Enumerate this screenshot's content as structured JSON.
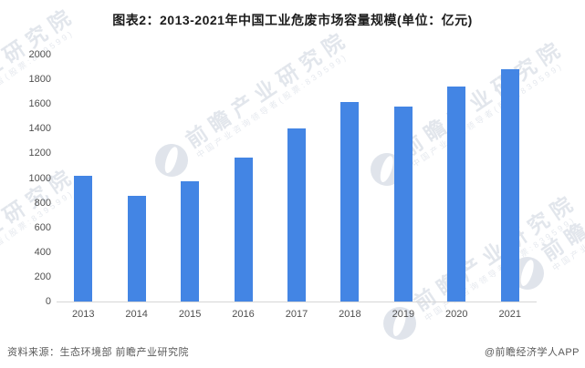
{
  "title": "图表2：2013-2021年中国工业危废市场容量规模(单位：亿元)",
  "footer": {
    "source": "资料来源：生态环境部 前瞻产业研究院",
    "credit": "@前瞻经济学人APP"
  },
  "watermark": {
    "text": "前瞻产业研究院",
    "subtext": "中国产业咨询领导者(股票:839599)"
  },
  "colors": {
    "bar": "#4385E4",
    "axis_line": "#d6d6d6",
    "tick_text": "#4f4f4f",
    "watermark": "#c7cfdb"
  },
  "chart_data": {
    "type": "bar",
    "title": "图表2：2013-2021年中国工业危废市场容量规模(单位：亿元)",
    "unit": "亿元",
    "categories": [
      "2013",
      "2014",
      "2015",
      "2016",
      "2017",
      "2018",
      "2019",
      "2020",
      "2021"
    ],
    "values": [
      1020,
      858,
      978,
      1172,
      1406,
      1623,
      1582,
      1751,
      1889
    ],
    "xlabel": "",
    "ylabel": "",
    "ylim": [
      0,
      2000
    ],
    "ytick_step": 200,
    "y_ticks": [
      2000,
      1800,
      1600,
      1400,
      1200,
      1000,
      800,
      600,
      400,
      200,
      0
    ],
    "grid": false,
    "legend": false
  }
}
